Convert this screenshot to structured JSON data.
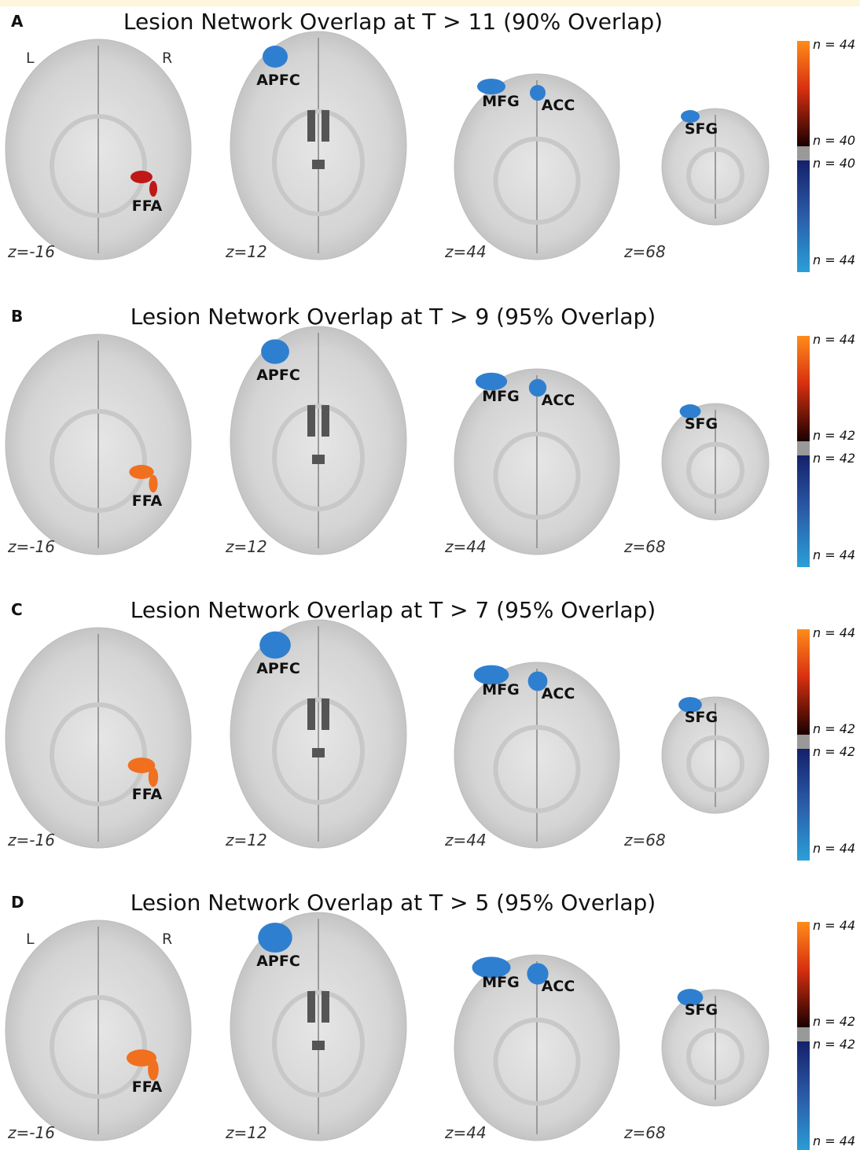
{
  "panels": [
    {
      "letter": "A",
      "title": "Lesion Network Overlap at T > 11 (90% Overlap)",
      "hemisphere_labels": [
        "L",
        "R"
      ],
      "slices": [
        {
          "z": "z=-16",
          "regions": [
            "FFA"
          ]
        },
        {
          "z": "z=12",
          "regions": [
            "APFC"
          ]
        },
        {
          "z": "z=44",
          "regions": [
            "MFG",
            "ACC"
          ]
        },
        {
          "z": "z=68",
          "regions": [
            "SFG"
          ]
        }
      ],
      "colorbar": [
        "n = 44",
        "n = 40",
        "n = 40",
        "n = 44"
      ]
    },
    {
      "letter": "B",
      "title": "Lesion Network Overlap at T > 9 (95% Overlap)",
      "slices": [
        {
          "z": "z=-16",
          "regions": [
            "FFA"
          ]
        },
        {
          "z": "z=12",
          "regions": [
            "APFC"
          ]
        },
        {
          "z": "z=44",
          "regions": [
            "MFG",
            "ACC"
          ]
        },
        {
          "z": "z=68",
          "regions": [
            "SFG"
          ]
        }
      ],
      "colorbar": [
        "n = 44",
        "n = 42",
        "n = 42",
        "n = 44"
      ]
    },
    {
      "letter": "C",
      "title": "Lesion Network Overlap at T > 7 (95% Overlap)",
      "slices": [
        {
          "z": "z=-16",
          "regions": [
            "FFA"
          ]
        },
        {
          "z": "z=12",
          "regions": [
            "APFC"
          ]
        },
        {
          "z": "z=44",
          "regions": [
            "MFG",
            "ACC"
          ]
        },
        {
          "z": "z=68",
          "regions": [
            "SFG"
          ]
        }
      ],
      "colorbar": [
        "n = 44",
        "n = 42",
        "n = 42",
        "n = 44"
      ]
    },
    {
      "letter": "D",
      "title": "Lesion Network Overlap at T > 5 (95% Overlap)",
      "hemisphere_labels": [
        "L",
        "R"
      ],
      "slices": [
        {
          "z": "z=-16",
          "regions": [
            "FFA"
          ]
        },
        {
          "z": "z=12",
          "regions": [
            "APFC"
          ]
        },
        {
          "z": "z=44",
          "regions": [
            "MFG",
            "ACC"
          ]
        },
        {
          "z": "z=68",
          "regions": [
            "SFG"
          ]
        }
      ],
      "colorbar": [
        "n = 44",
        "n = 42",
        "n = 42",
        "n = 44"
      ]
    }
  ]
}
